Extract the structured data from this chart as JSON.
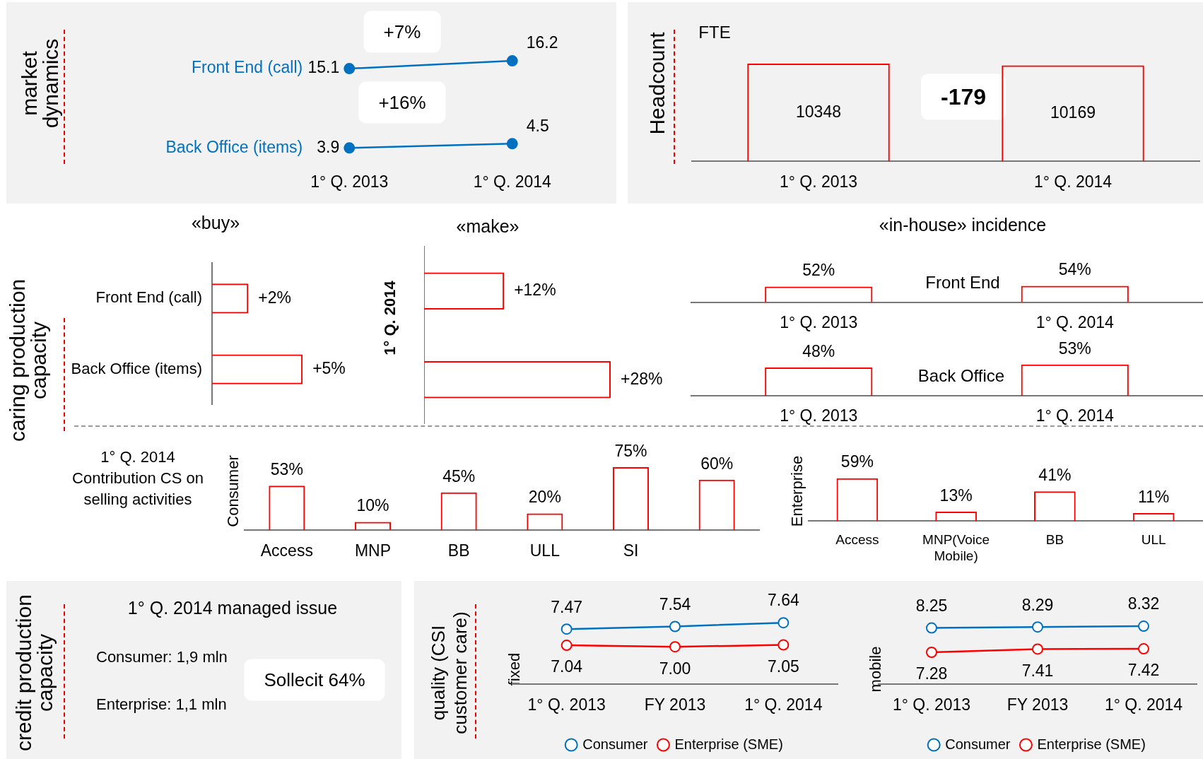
{
  "chart_data": [
    {
      "type": "line",
      "ylabel": "market dynamics",
      "categories": [
        "1° Q. 2013",
        "1° Q. 2014"
      ],
      "series": [
        {
          "name": "Front End (call)",
          "color": "#0070c0",
          "values": [
            15.1,
            16.2
          ]
        },
        {
          "name": "Back Office (items)",
          "color": "#0070c0",
          "values": [
            3.9,
            4.5
          ]
        }
      ],
      "annotations": [
        "+7%",
        "+16%"
      ],
      "data_labels": true,
      "marker": "circle",
      "legend": false
    },
    {
      "type": "bar",
      "ylabel": "Headcount",
      "categories": [
        "1° Q. 2013",
        "1° Q. 2014"
      ],
      "values": [
        10348,
        10169
      ],
      "color": "#ff0000",
      "data_labels": true,
      "annotations": [
        "FTE",
        "-179"
      ]
    },
    {
      "type": "bar",
      "orientation": "horizontal",
      "title": "«buy»",
      "ylabel": "caring production capacity",
      "categories": [
        "Front End (call)",
        "Back Office (items)"
      ],
      "values": [
        2,
        5
      ],
      "value_labels": [
        "+2%",
        "+5%"
      ],
      "color": "#ff0000"
    },
    {
      "type": "bar",
      "orientation": "horizontal",
      "title": "«make»",
      "ylabel": "1° Q. 2014",
      "categories": [
        null,
        null
      ],
      "values": [
        12,
        28
      ],
      "value_labels": [
        "+12%",
        "+28%"
      ],
      "color": "#ff0000",
      "tick_labels": false
    },
    {
      "type": "bar",
      "title": "«in-house» incidence",
      "categories": [
        "1° Q. 2013",
        "1° Q. 2014"
      ],
      "values": [
        52,
        54
      ],
      "value_labels": [
        "52%",
        "54%"
      ],
      "color": "#ff0000",
      "annotations": [
        "Front End"
      ]
    },
    {
      "type": "bar",
      "categories": [
        "1° Q. 2013",
        "1° Q. 2014"
      ],
      "values": [
        48,
        53
      ],
      "value_labels": [
        "48%",
        "53%"
      ],
      "color": "#ff0000",
      "annotations": [
        "Back Office"
      ]
    },
    {
      "type": "bar",
      "ylabel": "Consumer",
      "categories": [
        "Access",
        "MNP",
        "BB",
        "ULL",
        "SI",
        null
      ],
      "values": [
        53,
        10,
        45,
        20,
        75,
        60
      ],
      "value_labels": [
        "53%",
        "10%",
        "45%",
        "20%",
        "75%",
        "60%"
      ],
      "color": "#ff0000",
      "annotations": [
        "1° Q. 2014 Contribution CS on selling activities"
      ]
    },
    {
      "type": "bar",
      "ylabel": "Enterprise",
      "categories": [
        "Access",
        "MNP(Voice Mobile)",
        "BB",
        "ULL"
      ],
      "values": [
        59,
        13,
        41,
        11
      ],
      "value_labels": [
        "59%",
        "13%",
        "41%",
        "11%"
      ],
      "color": "#ff0000"
    },
    {
      "type": "other",
      "title": "1° Q. 2014 managed issue",
      "ylabel": "credit production capacity",
      "annotations": [
        "Consumer: 1,9  mln",
        "Enterprise: 1,1 mln",
        "Sollecit 64%"
      ]
    },
    {
      "type": "line",
      "ylabel": "fixed",
      "categories": [
        "1° Q. 2013",
        "FY 2013",
        "1° Q. 2014"
      ],
      "series": [
        {
          "name": "Consumer",
          "color": "#0070c0",
          "values": [
            7.47,
            7.54,
            7.64
          ]
        },
        {
          "name": "Enterprise (SME)",
          "color": "#ff0000",
          "values": [
            7.04,
            7.0,
            7.05
          ],
          "value_labels": [
            "7.04",
            "7.00",
            "7.05"
          ]
        }
      ],
      "data_labels": true,
      "marker": "circle",
      "legend": "bottom",
      "annotations": [
        "quality (CSI customer care)"
      ]
    },
    {
      "type": "line",
      "ylabel": "mobile",
      "categories": [
        "1° Q. 2013",
        "FY 2013",
        "1° Q. 2014"
      ],
      "series": [
        {
          "name": "Consumer",
          "color": "#0070c0",
          "values": [
            8.25,
            8.29,
            8.32
          ]
        },
        {
          "name": "Enterprise (SME)",
          "color": "#ff0000",
          "values": [
            7.28,
            7.41,
            7.42
          ]
        }
      ],
      "data_labels": true,
      "marker": "circle",
      "legend": "bottom"
    }
  ]
}
